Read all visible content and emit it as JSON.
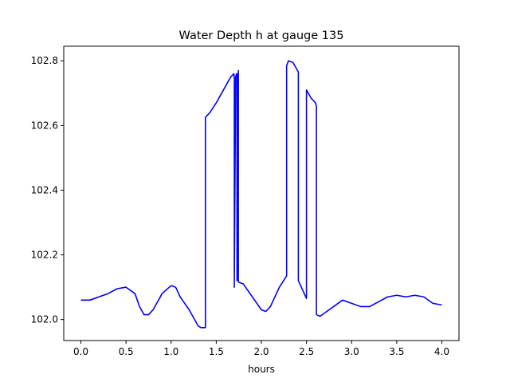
{
  "chart_data": {
    "type": "line",
    "title": "Water Depth h at gauge 135",
    "xlabel": "hours",
    "ylabel": "",
    "xlim": [
      -0.19,
      4.19
    ],
    "ylim": [
      101.935,
      102.845
    ],
    "xticks": [
      0.0,
      0.5,
      1.0,
      1.5,
      2.0,
      2.5,
      3.0,
      3.5,
      4.0
    ],
    "xtick_labels": [
      "0.0",
      "0.5",
      "1.0",
      "1.5",
      "2.0",
      "2.5",
      "3.0",
      "3.5",
      "4.0"
    ],
    "yticks": [
      102.0,
      102.2,
      102.4,
      102.6,
      102.8
    ],
    "ytick_labels": [
      "102.0",
      "102.2",
      "102.4",
      "102.6",
      "102.8"
    ],
    "grid": false,
    "series": [
      {
        "color": "#0000ff",
        "x": [
          0.0,
          0.1,
          0.2,
          0.3,
          0.4,
          0.5,
          0.6,
          0.65,
          0.7,
          0.75,
          0.8,
          0.9,
          1.0,
          1.05,
          1.1,
          1.2,
          1.3,
          1.33,
          1.38,
          1.38,
          1.43,
          1.5,
          1.6,
          1.66,
          1.695,
          1.7,
          1.7,
          1.715,
          1.725,
          1.73,
          1.73,
          1.745,
          1.745,
          1.75,
          1.8,
          1.9,
          2.0,
          2.05,
          2.1,
          2.2,
          2.28,
          2.28,
          2.3,
          2.35,
          2.4,
          2.41,
          2.41,
          2.5,
          2.5,
          2.51,
          2.55,
          2.6,
          2.61,
          2.61,
          2.65,
          2.7,
          2.8,
          2.9,
          3.0,
          3.1,
          3.2,
          3.3,
          3.4,
          3.5,
          3.6,
          3.7,
          3.8,
          3.9,
          4.0
        ],
        "y": [
          102.06,
          102.06,
          102.07,
          102.08,
          102.095,
          102.1,
          102.08,
          102.04,
          102.015,
          102.015,
          102.03,
          102.08,
          102.105,
          102.1,
          102.07,
          102.03,
          101.98,
          101.975,
          101.975,
          102.625,
          102.64,
          102.67,
          102.72,
          102.75,
          102.76,
          102.75,
          102.1,
          102.75,
          102.76,
          102.76,
          102.12,
          102.77,
          102.12,
          102.115,
          102.11,
          102.07,
          102.03,
          102.025,
          102.04,
          102.1,
          102.135,
          102.785,
          102.8,
          102.795,
          102.77,
          102.765,
          102.12,
          102.065,
          102.71,
          102.705,
          102.685,
          102.67,
          102.66,
          102.015,
          102.01,
          102.02,
          102.04,
          102.06,
          102.05,
          102.04,
          102.04,
          102.055,
          102.07,
          102.075,
          102.07,
          102.075,
          102.07,
          102.05,
          102.045
        ]
      }
    ]
  }
}
